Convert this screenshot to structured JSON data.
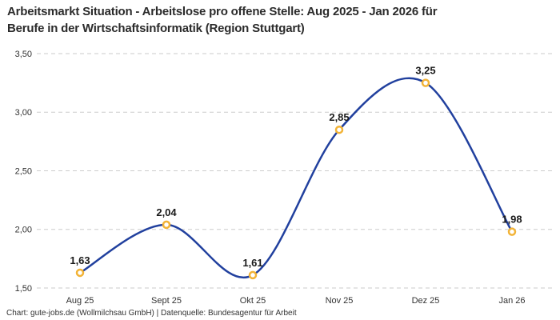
{
  "header": {
    "title_line1": "Arbeitsmarkt Situation - Arbeitslose pro offene Stelle: Aug 2025 - Jan 2026 für",
    "title_line2": "Berufe in der Wirtschaftsinformatik (Region Stuttgart)"
  },
  "footer": {
    "credit": "Chart: gute-jobs.de (Wollmilchsau GmbH) | Datenquelle: Bundesagentur für Arbeit"
  },
  "chart_data": {
    "type": "line",
    "title": "Arbeitsmarkt Situation - Arbeitslose pro offene Stelle: Aug 2025 - Jan 2026 für Berufe in der Wirtschaftsinformatik (Region Stuttgart)",
    "categories": [
      "Aug 25",
      "Sept 25",
      "Okt 25",
      "Nov 25",
      "Dez 25",
      "Jan 26"
    ],
    "series": [
      {
        "name": "Arbeitslose pro offene Stelle",
        "values": [
          1.63,
          2.04,
          1.61,
          2.85,
          3.25,
          1.98
        ]
      }
    ],
    "value_labels": [
      "1,63",
      "2,04",
      "1,61",
      "2,85",
      "3,25",
      "1,98"
    ],
    "xlabel": "",
    "ylabel": "",
    "ylim": [
      1.5,
      3.5
    ],
    "yticks": [
      1.5,
      2.0,
      2.5,
      3.0,
      3.5
    ],
    "ytick_labels": [
      "1,50",
      "2,00",
      "2,50",
      "3,00",
      "3,50"
    ],
    "grid": "horizontal-dashed",
    "legend": "none",
    "colors": {
      "line": "#21409E",
      "marker_stroke": "#F2B337",
      "marker_fill": "#FFFFFF",
      "grid": "#CBCBCB",
      "value_label": "#1A1A1A",
      "axis_text": "#333333"
    }
  }
}
